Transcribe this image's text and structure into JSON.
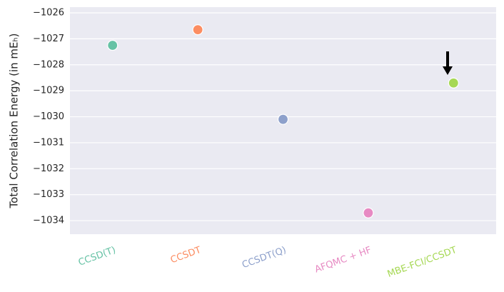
{
  "chart_data": {
    "type": "scatter",
    "y_label": "Total Correlation Energy (in mEₕ)",
    "categories": [
      "CCSD(T)",
      "CCSDT",
      "CCSDT(Q)",
      "AFQMC + HF",
      "MBE-FCI/CCSDT"
    ],
    "values": [
      -1027.25,
      -1026.65,
      -1030.1,
      -1033.7,
      -1028.7
    ],
    "colors": [
      "#66c2a5",
      "#fc8d62",
      "#8da0cb",
      "#e78ac3",
      "#a6d854"
    ],
    "ylim": [
      -1034.52,
      -1025.78
    ],
    "yticks": [
      {
        "value": -1026,
        "label": "−1026"
      },
      {
        "value": -1027,
        "label": "−1027"
      },
      {
        "value": -1028,
        "label": "−1028"
      },
      {
        "value": -1029,
        "label": "−1029"
      },
      {
        "value": -1030,
        "label": "−1030"
      },
      {
        "value": -1031,
        "label": "−1031"
      },
      {
        "value": -1032,
        "label": "−1032"
      },
      {
        "value": -1033,
        "label": "−1033"
      },
      {
        "value": -1034,
        "label": "−1034"
      }
    ],
    "grid": true
  }
}
